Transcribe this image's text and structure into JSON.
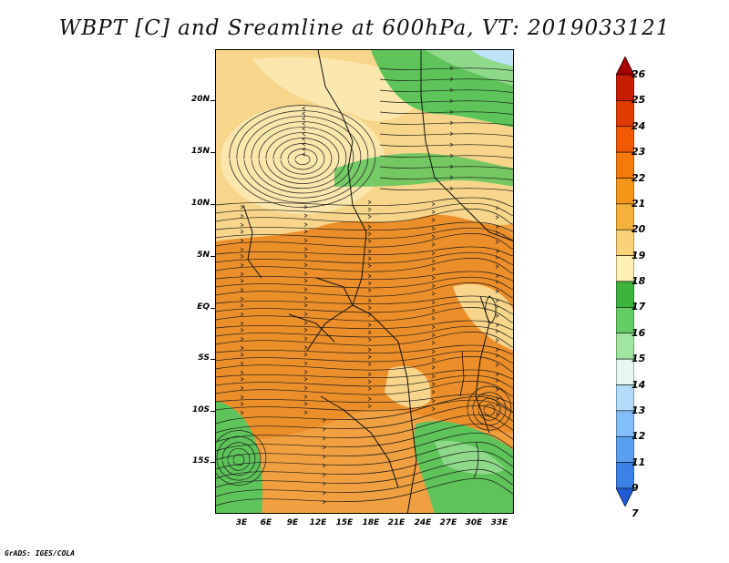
{
  "title": "WBPT [C] and Sreamline at 600hPa, VT: 2019033121",
  "map": {
    "lat_labels": [
      "20N",
      "15N",
      "10N",
      "5N",
      "EQ",
      "5S",
      "10S",
      "15S"
    ],
    "lon_labels": [
      "3E",
      "6E",
      "9E",
      "12E",
      "15E",
      "18E",
      "21E",
      "24E",
      "27E",
      "30E",
      "33E"
    ]
  },
  "colorbar": {
    "labels": [
      "26",
      "25",
      "24",
      "23",
      "22",
      "21",
      "20",
      "19",
      "18",
      "17",
      "16",
      "15",
      "14",
      "13",
      "12",
      "11",
      "9",
      "7"
    ],
    "colors": [
      "#a50000",
      "#c81e00",
      "#e13c00",
      "#f05a00",
      "#f57a0a",
      "#f59619",
      "#f5b23a",
      "#fad27a",
      "#fff0b4",
      "#3cb43c",
      "#64cd64",
      "#a0e6a0",
      "#e6f8f0",
      "#b4dcfa",
      "#82befa",
      "#5aa0f0",
      "#3c82e6",
      "#1e5ad2"
    ]
  },
  "credit": "GrADS: IGES/COLA",
  "colors": {
    "warm": "#f29b2e",
    "pale": "#f9e6a6",
    "cream": "#fce9a8",
    "green": "#59c155",
    "light_green": "#8fd98a",
    "blue": "#bfe3f7"
  }
}
